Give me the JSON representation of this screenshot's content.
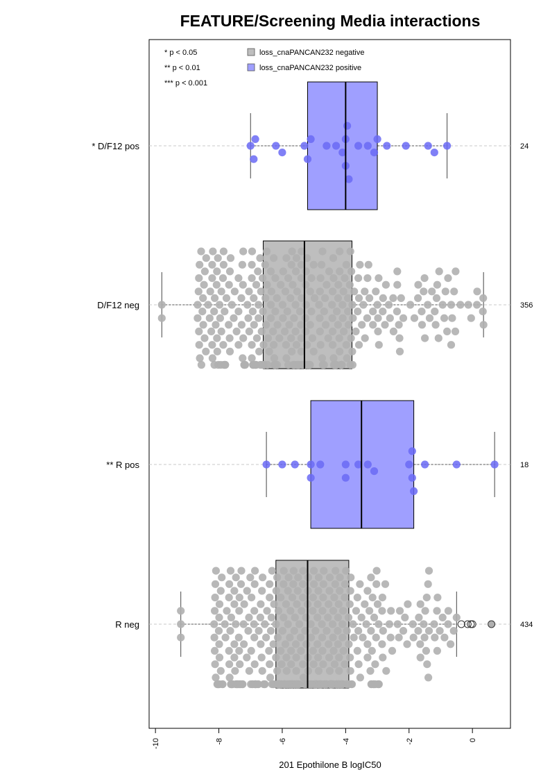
{
  "chart_data": {
    "type": "boxplot-beeswarm",
    "title": "FEATURE/Screening Media interactions",
    "xlabel": "201 Epothilone B logIC50",
    "xlim": [
      -10.2,
      1.2
    ],
    "x_ticks": [
      -10,
      -8,
      -6,
      -4,
      -2,
      0
    ],
    "legend_position": "top-left",
    "significance_legend": [
      "* p < 0.05",
      "** p < 0.01",
      "*** p < 0.001"
    ],
    "series": [
      {
        "name": "loss_cnaPANCAN232 negative",
        "color": "#bebebe",
        "edge": "#a9a9a9",
        "dot_color": "#b0b0b0"
      },
      {
        "name": "loss_cnaPANCAN232 positive",
        "color": "#9f9fff",
        "edge": "#8080ff",
        "dot_color": "#6a6af5"
      }
    ],
    "groups": [
      {
        "label": "* D/F12 pos",
        "n": "24",
        "series": 1,
        "whisker_low": -7.0,
        "q1": -5.2,
        "median": -4.0,
        "q3": -3.0,
        "whisker_high": -0.8,
        "points": [
          -7.0,
          -6.9,
          -6.85,
          -6.2,
          -6.0,
          -5.3,
          -5.2,
          -5.1,
          -4.6,
          -4.3,
          -4.1,
          -4.0,
          -4.0,
          -3.95,
          -3.9,
          -3.6,
          -3.3,
          -3.0,
          -3.1,
          -2.7,
          -2.1,
          -1.4,
          -1.2,
          -0.8
        ],
        "outliers": []
      },
      {
        "label": "D/F12 neg",
        "n": "356",
        "series": 0,
        "whisker_low": -9.8,
        "q1": -6.6,
        "median": -5.3,
        "q3": -3.8,
        "whisker_high": 0.35,
        "points": [],
        "outliers": []
      },
      {
        "label": "** R pos",
        "n": "18",
        "series": 1,
        "whisker_low": -6.5,
        "q1": -5.1,
        "median": -3.5,
        "q3": -1.85,
        "whisker_high": 0.7,
        "points": [
          -6.5,
          -6.0,
          -5.6,
          -5.1,
          -5.1,
          -4.8,
          -4.0,
          -4.0,
          -3.6,
          -3.3,
          -3.1,
          -2.0,
          -1.9,
          -1.9,
          -1.85,
          -1.5,
          -0.5,
          0.7
        ],
        "outliers": []
      },
      {
        "label": "R neg",
        "n": "434",
        "series": 0,
        "whisker_low": -9.2,
        "q1": -6.2,
        "median": -5.2,
        "q3": -3.9,
        "whisker_high": -0.5,
        "points": [],
        "outliers": [
          -0.35,
          -0.15,
          -0.05,
          0.0,
          0.6
        ]
      }
    ]
  }
}
